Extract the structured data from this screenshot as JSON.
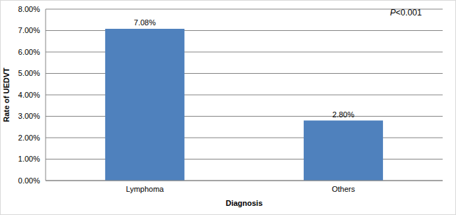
{
  "chart_data": {
    "type": "bar",
    "annotation": "P<0.001",
    "x_label": "Diagnosis",
    "y_label": "Rate of UEDVT",
    "categories": [
      "Lymphoma",
      "Others"
    ],
    "values": [
      7.08,
      2.8
    ],
    "value_labels": [
      "7.08%",
      "2.80%"
    ],
    "data_labels": true,
    "color": "#4f81bd",
    "ylim": [
      0,
      8
    ],
    "yticks": [
      {
        "value": 0,
        "label": "0.00%"
      },
      {
        "value": 1,
        "label": "1.00%"
      },
      {
        "value": 2,
        "label": "2.00%"
      },
      {
        "value": 3,
        "label": "3.00%"
      },
      {
        "value": 4,
        "label": "4.00%"
      },
      {
        "value": 5,
        "label": "5.00%"
      },
      {
        "value": 6,
        "label": "6.00%"
      },
      {
        "value": 7,
        "label": "7.00%"
      },
      {
        "value": 8,
        "label": "8.00%"
      }
    ],
    "grid": true
  }
}
